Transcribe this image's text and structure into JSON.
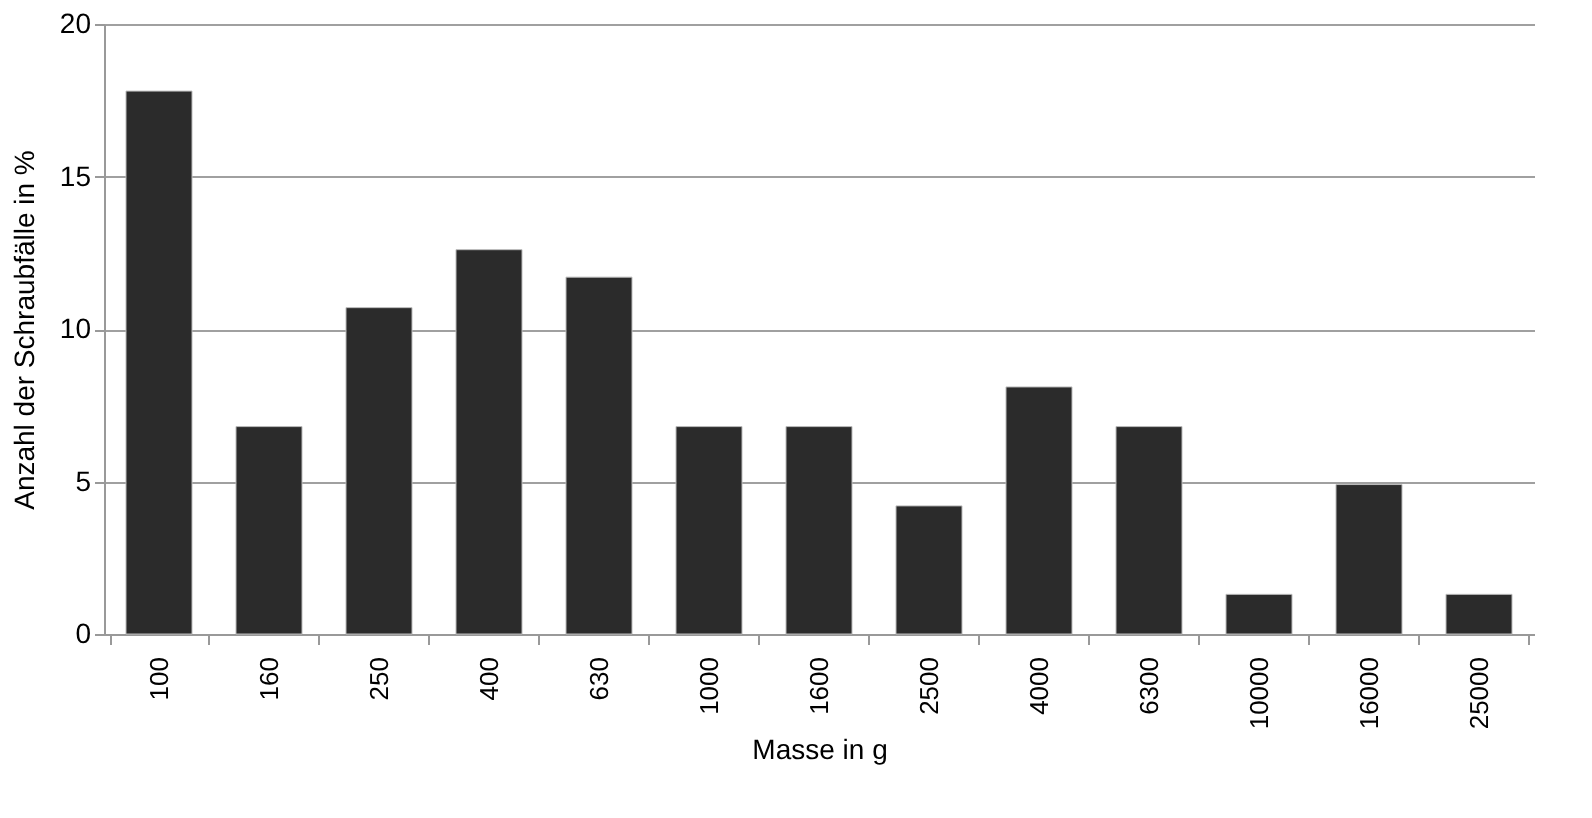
{
  "chart_data": {
    "type": "bar",
    "xlabel": "Masse in g",
    "ylabel": "Anzahl der Schraubfälle in %",
    "categories": [
      "100",
      "160",
      "250",
      "400",
      "630",
      "1000",
      "1600",
      "2500",
      "4000",
      "6300",
      "10000",
      "16000",
      "25000"
    ],
    "values": [
      17.8,
      6.8,
      10.7,
      12.6,
      11.7,
      6.8,
      6.8,
      4.2,
      8.1,
      6.8,
      1.3,
      4.9,
      1.3
    ],
    "color": "#2b2b2b",
    "ylim": [
      0,
      20
    ],
    "yticks": [
      0,
      5,
      10,
      15,
      20
    ],
    "grid": "y"
  }
}
